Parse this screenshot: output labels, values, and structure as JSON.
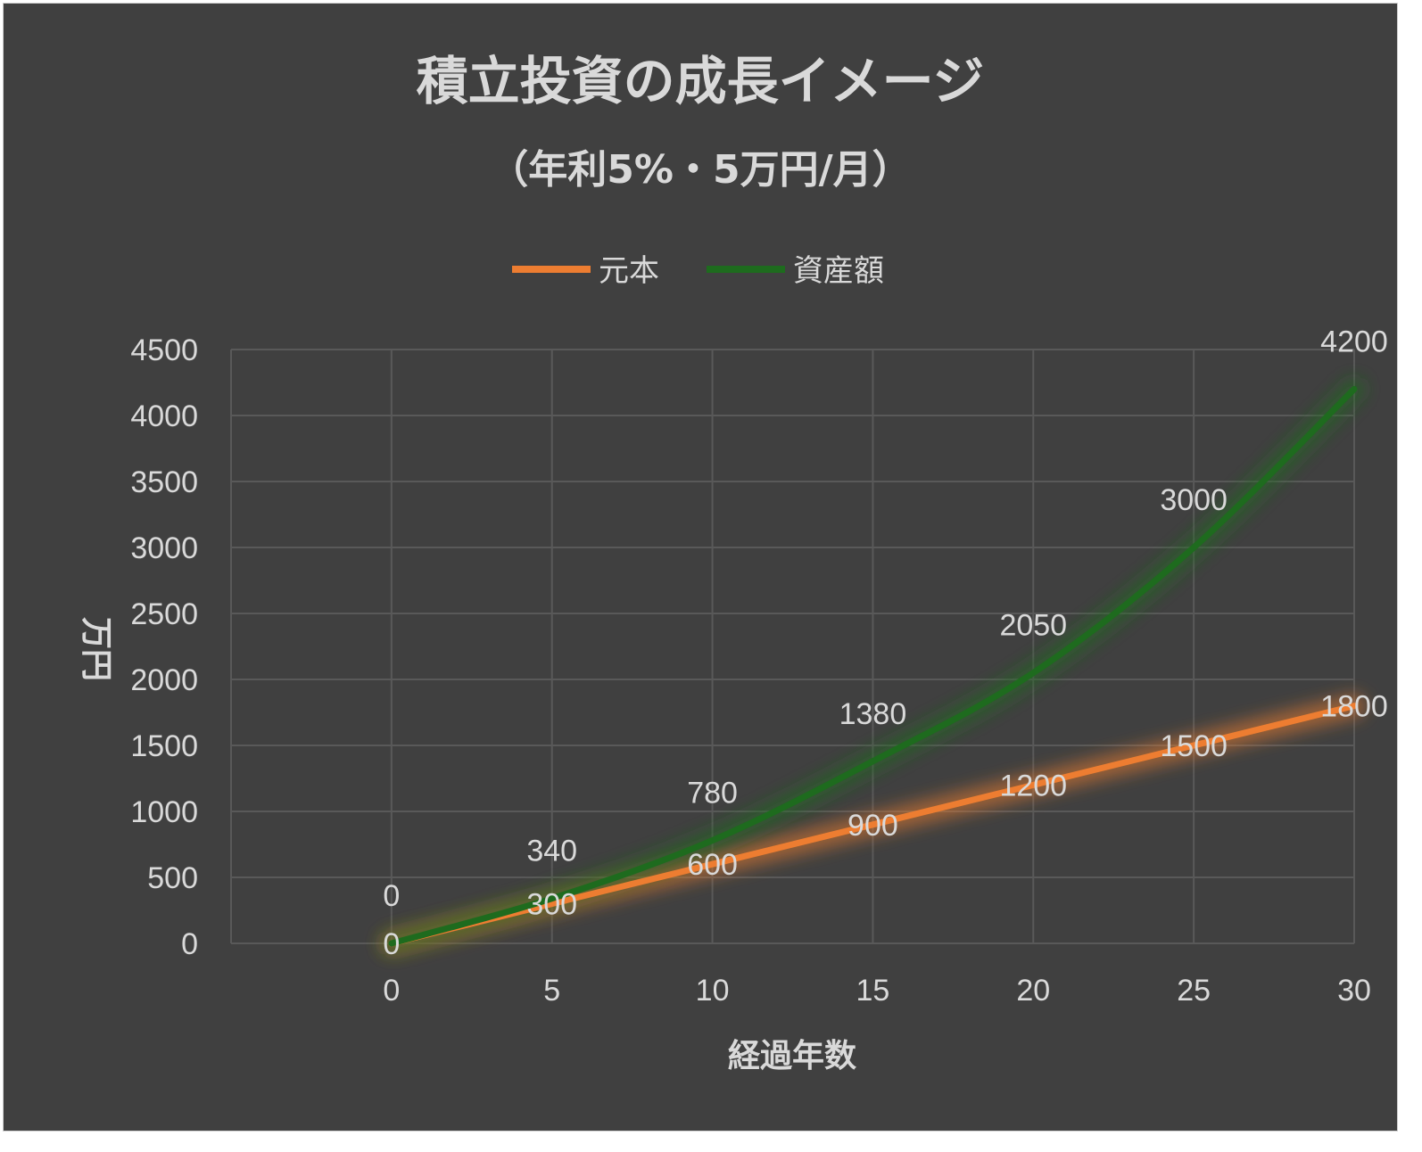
{
  "chart_data": {
    "type": "line",
    "title": "積立投資の成長イメージ",
    "subtitle": "（年利5%・5万円/月）",
    "xlabel": "経過年数",
    "ylabel": "万円",
    "x": [
      0,
      5,
      10,
      15,
      20,
      25,
      30
    ],
    "xlim": [
      -5,
      30
    ],
    "ylim": [
      0,
      4500
    ],
    "x_ticks": [
      0,
      5,
      10,
      15,
      20,
      25,
      30
    ],
    "y_ticks": [
      0,
      500,
      1000,
      1500,
      2000,
      2500,
      3000,
      3500,
      4000,
      4500
    ],
    "grid": true,
    "legend_position": "top",
    "series": [
      {
        "name": "元本",
        "color": "#ed7d31",
        "values": [
          0,
          300,
          600,
          900,
          1200,
          1500,
          1800
        ]
      },
      {
        "name": "資産額",
        "color": "#1e6b1e",
        "values": [
          0,
          340,
          780,
          1380,
          2050,
          3000,
          4200
        ]
      }
    ]
  },
  "colors": {
    "background": "#404040",
    "grid": "#595959",
    "text": "#d9d9d9"
  }
}
